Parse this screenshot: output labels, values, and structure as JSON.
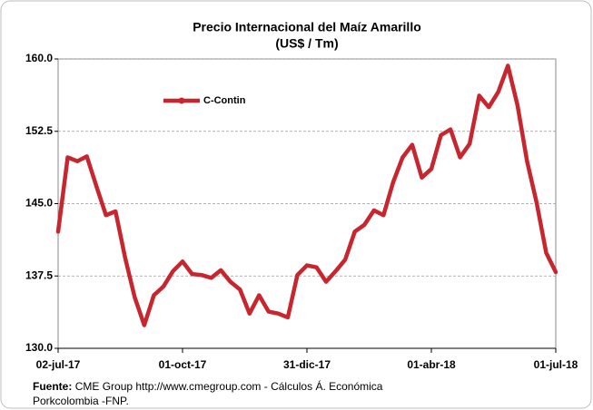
{
  "chart_data": {
    "type": "line",
    "title": "Precio Internacional del Maíz Amarillo",
    "subtitle": "(US$ / Tm)",
    "x": [
      "2017-07-02",
      "2017-07-09",
      "2017-07-16",
      "2017-07-23",
      "2017-07-30",
      "2017-08-06",
      "2017-08-13",
      "2017-08-20",
      "2017-08-27",
      "2017-09-03",
      "2017-09-10",
      "2017-09-17",
      "2017-09-24",
      "2017-10-01",
      "2017-10-08",
      "2017-10-15",
      "2017-10-22",
      "2017-10-29",
      "2017-11-05",
      "2017-11-12",
      "2017-11-19",
      "2017-11-26",
      "2017-12-03",
      "2017-12-10",
      "2017-12-17",
      "2017-12-24",
      "2017-12-31",
      "2018-01-07",
      "2018-01-14",
      "2018-01-21",
      "2018-01-28",
      "2018-02-04",
      "2018-02-11",
      "2018-02-18",
      "2018-02-25",
      "2018-03-04",
      "2018-03-11",
      "2018-03-18",
      "2018-03-25",
      "2018-04-01",
      "2018-04-08",
      "2018-04-15",
      "2018-04-22",
      "2018-04-29",
      "2018-05-06",
      "2018-05-13",
      "2018-05-20",
      "2018-05-27",
      "2018-06-03",
      "2018-06-10",
      "2018-06-17",
      "2018-06-24",
      "2018-07-01"
    ],
    "series": [
      {
        "name": "C-Contin",
        "color": "#c8262e",
        "values": [
          142.1,
          149.8,
          149.4,
          149.9,
          146.8,
          143.8,
          144.2,
          139.4,
          135.3,
          132.4,
          135.5,
          136.4,
          138.0,
          139.0,
          137.7,
          137.6,
          137.3,
          138.1,
          136.9,
          136.1,
          133.6,
          135.5,
          133.8,
          133.6,
          133.2,
          137.6,
          138.6,
          138.4,
          136.9,
          138.0,
          139.2,
          142.1,
          142.8,
          144.3,
          143.8,
          147.2,
          149.8,
          151.1,
          147.7,
          148.6,
          152.1,
          152.7,
          149.8,
          151.2,
          156.2,
          155.0,
          156.6,
          159.3,
          155.2,
          149.4,
          145.1,
          139.9,
          137.9
        ]
      }
    ],
    "xlim": [
      "2017-07-02",
      "2018-07-01"
    ],
    "xticks": [
      {
        "value": "2017-07-02",
        "label": "02-jul-17"
      },
      {
        "value": "2017-10-01",
        "label": "01-oct-17"
      },
      {
        "value": "2017-12-31",
        "label": "31-dic-17"
      },
      {
        "value": "2018-04-01",
        "label": "01-abr-18"
      },
      {
        "value": "2018-07-01",
        "label": "01-jul-18"
      }
    ],
    "ylim": [
      130,
      160
    ],
    "yticks": [
      {
        "value": 130,
        "label": "130.0"
      },
      {
        "value": 137.5,
        "label": "137.5"
      },
      {
        "value": 145,
        "label": "145.0"
      },
      {
        "value": 152.5,
        "label": "152.5"
      },
      {
        "value": 160,
        "label": "160.0"
      }
    ],
    "grid": true,
    "legend": "upper left",
    "source": {
      "label": "Fuente:",
      "lines": [
        "CME Group http://www.cmegroup.com - Cálculos Á. Económica",
        "Porkcolombia -FNP."
      ]
    }
  }
}
